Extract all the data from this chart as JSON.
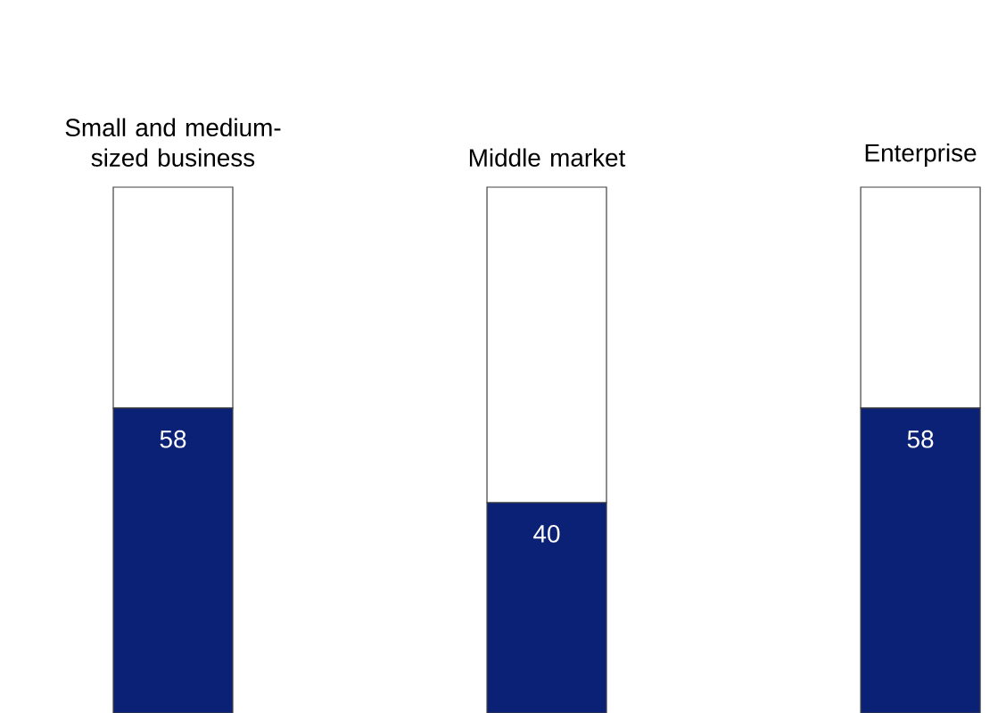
{
  "chart_data": {
    "type": "bar",
    "stacked": true,
    "ylim": [
      0,
      100
    ],
    "categories": [
      "Small and medium-sized business",
      "Middle market",
      "Enterprise"
    ],
    "series": [
      {
        "color": "#0b2175",
        "values": [
          58,
          40,
          58
        ],
        "value_labels": [
          "58",
          "40",
          "58"
        ]
      },
      {
        "color": "#ffffff",
        "values": [
          42,
          60,
          42
        ]
      }
    ]
  }
}
